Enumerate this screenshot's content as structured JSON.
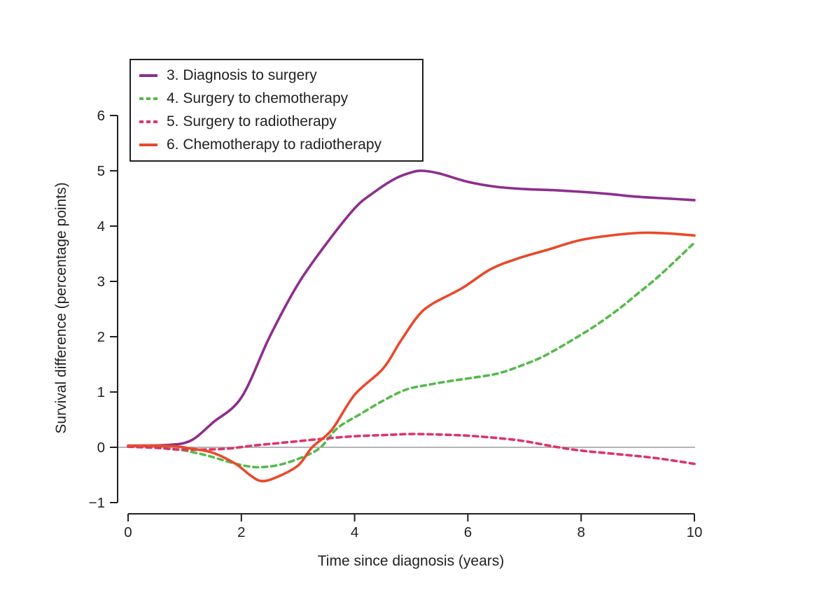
{
  "figure": {
    "x_axis_label": "Time since diagnosis (years)",
    "y_axis_label": "Survival difference (percentage points)"
  },
  "colors": {
    "axis": "#231f20",
    "text": "#231f20",
    "zero_line": "#9b9b9b",
    "background": "#ffffff"
  },
  "chart_data": {
    "type": "line",
    "title": "",
    "xlabel": "Time since diagnosis (years)",
    "ylabel": "Survival difference (percentage points)",
    "xlim": [
      0,
      10
    ],
    "ylim": [
      -1,
      6
    ],
    "x_ticks": [
      0,
      2,
      4,
      6,
      8,
      10
    ],
    "y_ticks": [
      -1,
      0,
      1,
      2,
      3,
      4,
      5,
      6
    ],
    "grid": false,
    "legend_position": "top-left-inside",
    "reference_line_y": 0,
    "series": [
      {
        "name": "3. Diagnosis to surgery",
        "color": "#8e2d8e",
        "style": "solid",
        "x": [
          0,
          0.4,
          0.8,
          1.0,
          1.2,
          1.5,
          2.0,
          2.5,
          3.0,
          3.5,
          4.0,
          4.3,
          4.7,
          5.0,
          5.2,
          5.5,
          6.0,
          6.5,
          7.0,
          7.5,
          8.0,
          8.5,
          9.0,
          9.5,
          10
        ],
        "y": [
          0.03,
          0.03,
          0.05,
          0.08,
          0.18,
          0.45,
          0.9,
          2.0,
          2.95,
          3.68,
          4.32,
          4.58,
          4.85,
          4.97,
          5.0,
          4.95,
          4.8,
          4.71,
          4.67,
          4.65,
          4.62,
          4.58,
          4.53,
          4.5,
          4.47
        ]
      },
      {
        "name": "4. Surgery to chemotherapy",
        "color": "#56b94c",
        "style": "dashed",
        "x": [
          0,
          0.4,
          0.7,
          1.0,
          1.4,
          1.8,
          2.1,
          2.35,
          2.7,
          3.1,
          3.4,
          3.7,
          4.1,
          4.5,
          4.9,
          5.3,
          5.7,
          6.1,
          6.55,
          7.0,
          7.4,
          8.1,
          8.6,
          9.0,
          9.4,
          10
        ],
        "y": [
          0.02,
          0.0,
          -0.02,
          -0.06,
          -0.15,
          -0.27,
          -0.34,
          -0.36,
          -0.31,
          -0.17,
          0.0,
          0.35,
          0.6,
          0.84,
          1.04,
          1.13,
          1.2,
          1.26,
          1.34,
          1.5,
          1.68,
          2.1,
          2.45,
          2.78,
          3.12,
          3.7
        ]
      },
      {
        "name": "5. Surgery to radiotherapy",
        "color": "#dd3468",
        "style": "dashed",
        "x": [
          0,
          0.5,
          0.9,
          1.4,
          1.8,
          2.2,
          2.6,
          3.0,
          3.5,
          4.0,
          4.5,
          5.0,
          5.5,
          6.0,
          6.6,
          7.0,
          7.6,
          8.0,
          8.5,
          9.1,
          9.5,
          10
        ],
        "y": [
          0.01,
          -0.01,
          -0.04,
          -0.04,
          -0.02,
          0.03,
          0.07,
          0.11,
          0.16,
          0.2,
          0.22,
          0.24,
          0.23,
          0.21,
          0.16,
          0.11,
          0.0,
          -0.06,
          -0.11,
          -0.17,
          -0.22,
          -0.3
        ]
      },
      {
        "name": "6. Chemotherapy to radiotherapy",
        "color": "#e9492b",
        "style": "solid",
        "x": [
          0,
          0.4,
          0.8,
          1.1,
          1.5,
          1.9,
          2.15,
          2.35,
          2.6,
          3.0,
          3.25,
          3.6,
          4.0,
          4.5,
          4.8,
          5.1,
          5.35,
          5.9,
          6.4,
          6.9,
          7.4,
          8.0,
          8.6,
          9.1,
          9.5,
          10
        ],
        "y": [
          0.03,
          0.03,
          0.02,
          -0.02,
          -0.1,
          -0.3,
          -0.5,
          -0.61,
          -0.55,
          -0.33,
          0.0,
          0.32,
          0.95,
          1.42,
          1.9,
          2.35,
          2.58,
          2.88,
          3.22,
          3.42,
          3.57,
          3.75,
          3.84,
          3.88,
          3.87,
          3.83
        ]
      }
    ]
  }
}
